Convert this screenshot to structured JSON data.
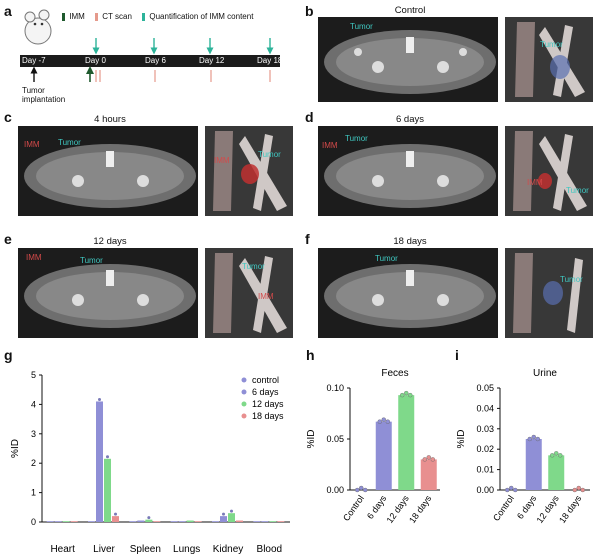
{
  "panels": {
    "a": {
      "label": "a",
      "legend": [
        "IMM",
        "CT scan",
        "Quantification of IMM content"
      ],
      "timeline": [
        "Day -7",
        "Day 0",
        "Day 6",
        "Day 12",
        "Day 18"
      ],
      "implant": "Tumor implantation",
      "colors": {
        "imm": "#1f5a2e",
        "ct": "#e59a8c",
        "quant": "#2db39a"
      }
    },
    "b": {
      "label": "b",
      "title": "Control",
      "tumor": "Tumor",
      "tumor3d": "Tumor"
    },
    "c": {
      "label": "c",
      "title": "4 hours",
      "imm": "IMM",
      "tumor": "Tumor",
      "imm3d": "IMM",
      "tumor3d": "Tumor"
    },
    "d": {
      "label": "d",
      "title": "6 days",
      "imm": "IMM",
      "tumor": "Tumor",
      "imm3d": "IMM",
      "tumor3d": "Tumor"
    },
    "e": {
      "label": "e",
      "title": "12 days",
      "imm": "IMM",
      "tumor": "Tumor",
      "imm3d": "IMM",
      "tumor3d": "Tumor"
    },
    "f": {
      "label": "f",
      "title": "18 days",
      "tumor": "Tumor",
      "tumor3d": "Tumor"
    },
    "g": {
      "label": "g"
    },
    "h": {
      "label": "h"
    },
    "i": {
      "label": "i"
    }
  },
  "chart_data": [
    {
      "type": "bar",
      "panel": "g",
      "ylabel": "%ID",
      "ylim": [
        0,
        5
      ],
      "yticks": [
        "0",
        "1",
        "2",
        "3",
        "4",
        "5"
      ],
      "categories": [
        "Heart",
        "Liver",
        "Spleen",
        "Lungs",
        "Kidney",
        "Blood"
      ],
      "legend_position": "top-right",
      "series": [
        {
          "name": "control",
          "color": "#8f8fd6",
          "values": [
            0.0,
            0.0,
            0.0,
            0.0,
            0.0,
            0.0
          ]
        },
        {
          "name": "6 days",
          "color": "#8f8fd6",
          "values": [
            0.0,
            4.1,
            0.05,
            0.0,
            0.2,
            0.0
          ]
        },
        {
          "name": "12 days",
          "color": "#7fd98a",
          "values": [
            0.0,
            2.15,
            0.08,
            0.05,
            0.3,
            0.0
          ]
        },
        {
          "name": "18 days",
          "color": "#e88f8f",
          "values": [
            0.0,
            0.2,
            0.02,
            0.02,
            0.05,
            0.0
          ]
        }
      ]
    },
    {
      "type": "bar",
      "panel": "h",
      "title": "Feces",
      "ylabel": "%ID",
      "ylim": [
        0,
        0.1
      ],
      "yticks": [
        "0.00",
        "0.05",
        "0.10"
      ],
      "categories": [
        "Control",
        "6 days",
        "12 days",
        "18 days"
      ],
      "colors": [
        "#8f8fd6",
        "#8f8fd6",
        "#7fd98a",
        "#e88f8f"
      ],
      "values": [
        0.0,
        0.067,
        0.093,
        0.03
      ]
    },
    {
      "type": "bar",
      "panel": "i",
      "title": "Urine",
      "ylabel": "%ID",
      "ylim": [
        0,
        0.05
      ],
      "yticks": [
        "0.00",
        "0.01",
        "0.02",
        "0.03",
        "0.04",
        "0.05"
      ],
      "categories": [
        "Control",
        "6 days",
        "12 days",
        "18 days"
      ],
      "colors": [
        "#8f8fd6",
        "#8f8fd6",
        "#7fd98a",
        "#e88f8f"
      ],
      "values": [
        0.0,
        0.025,
        0.017,
        0.0
      ]
    }
  ]
}
